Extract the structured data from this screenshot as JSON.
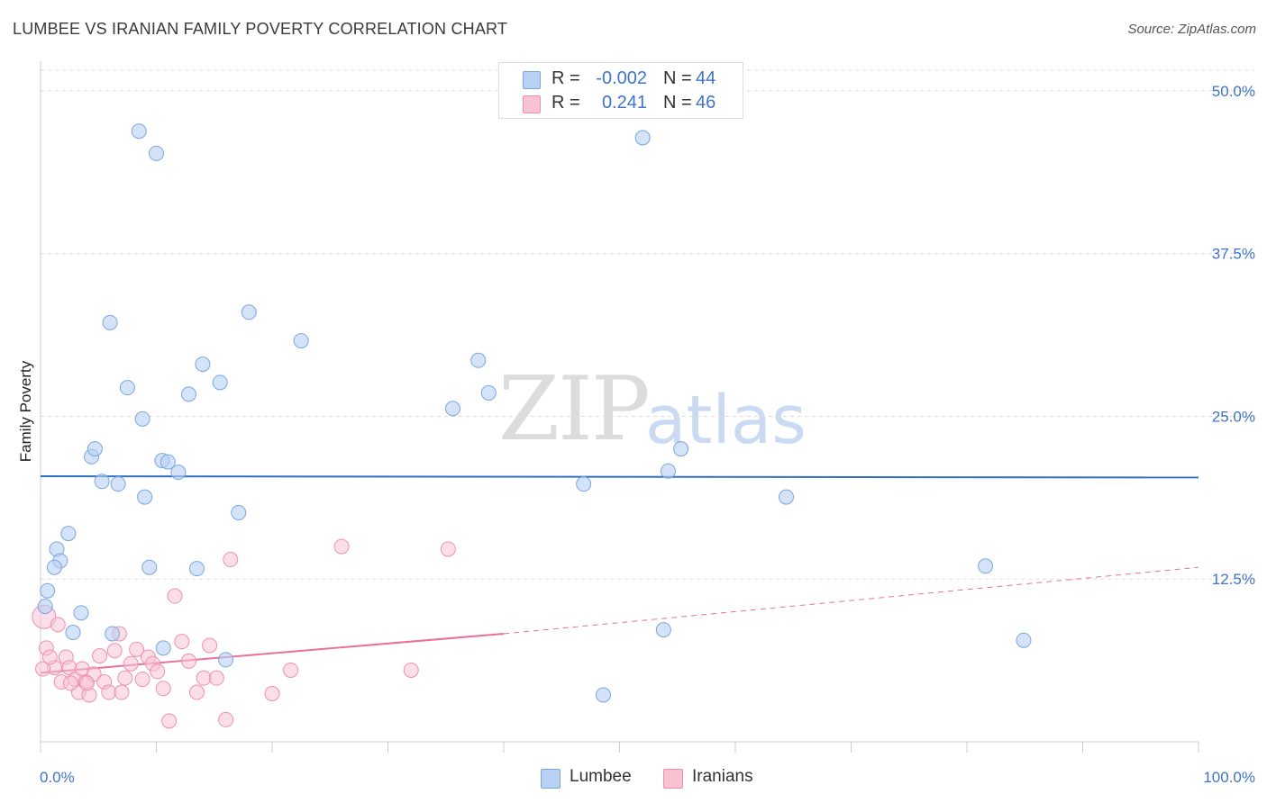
{
  "title": "LUMBEE VS IRANIAN FAMILY POVERTY CORRELATION CHART",
  "source": "Source: ZipAtlas.com",
  "watermark": {
    "zip": "ZIP",
    "atlas": "atlas"
  },
  "legend": {
    "rows": [
      {
        "r_label": "R =",
        "r_value": "-0.002",
        "n_label": "N =",
        "n_value": "44"
      },
      {
        "r_label": "R =",
        "r_value": "0.241",
        "n_label": "N =",
        "n_value": "46"
      }
    ]
  },
  "bottom_legend": {
    "lumbee": "Lumbee",
    "iranians": "Iranians"
  },
  "colors": {
    "lumbee_fill": "#b8d0f2",
    "lumbee_stroke": "#7aa6e0",
    "lumbee_line": "#2f6fc6",
    "iranian_fill": "#f7c3d3",
    "iranian_stroke": "#ee8fb0",
    "iranian_line": "#e8709a",
    "tick_text": "#3f74c9",
    "grid": "#dddddd"
  },
  "chart_data": {
    "type": "scatter",
    "title": "LUMBEE VS IRANIAN FAMILY POVERTY CORRELATION CHART",
    "xlabel": "",
    "ylabel": "Family Poverty",
    "xlim": [
      0,
      100
    ],
    "ylim": [
      0,
      52
    ],
    "x_tick_labels": [
      "0.0%",
      "100.0%"
    ],
    "y_ticks": [
      12.5,
      25.0,
      37.5,
      50.0
    ],
    "y_tick_labels": [
      "12.5%",
      "25.0%",
      "37.5%",
      "50.0%"
    ],
    "legend_position": "top-center",
    "series": [
      {
        "name": "Lumbee",
        "x": [
          8.5,
          10.0,
          52.0,
          6.0,
          18.0,
          22.5,
          7.5,
          15.5,
          12.8,
          14.0,
          35.6,
          38.7,
          8.8,
          4.4,
          4.7,
          10.5,
          11.0,
          11.9,
          5.3,
          6.7,
          37.8,
          9.0,
          17.1,
          2.4,
          1.4,
          1.7,
          1.2,
          0.6,
          0.4,
          3.5,
          2.8,
          6.2,
          9.4,
          13.5,
          10.6,
          16.0,
          55.3,
          54.2,
          64.4,
          81.6,
          53.8,
          84.9,
          48.6,
          46.9
        ],
        "y": [
          46.9,
          45.2,
          46.4,
          32.2,
          33.0,
          30.8,
          27.2,
          27.6,
          26.7,
          29.0,
          25.6,
          26.8,
          24.8,
          21.9,
          22.5,
          21.6,
          21.5,
          20.7,
          20.0,
          19.8,
          29.3,
          18.8,
          17.6,
          16.0,
          14.8,
          13.9,
          13.4,
          11.6,
          10.4,
          9.9,
          8.4,
          8.3,
          13.4,
          13.3,
          7.2,
          6.3,
          22.5,
          20.8,
          18.8,
          13.5,
          8.6,
          7.8,
          3.6,
          19.8
        ]
      },
      {
        "name": "Iranians",
        "x": [
          0.3,
          1.5,
          0.5,
          1.2,
          1.8,
          2.2,
          2.5,
          3.0,
          3.3,
          3.6,
          3.9,
          4.2,
          4.6,
          5.1,
          5.5,
          5.9,
          6.4,
          7.0,
          7.3,
          7.8,
          8.3,
          8.8,
          9.3,
          9.7,
          10.1,
          10.6,
          11.1,
          11.6,
          12.2,
          12.8,
          13.5,
          14.1,
          14.6,
          15.2,
          16.0,
          16.4,
          20.0,
          21.6,
          26.0,
          32.0,
          35.2,
          0.2,
          0.8,
          2.6,
          4.0,
          6.8
        ],
        "y": [
          9.6,
          9.0,
          7.2,
          5.7,
          4.6,
          6.5,
          5.7,
          4.8,
          3.8,
          5.6,
          4.6,
          3.6,
          5.2,
          6.6,
          4.6,
          3.8,
          7.0,
          3.8,
          4.9,
          6.0,
          7.1,
          4.8,
          6.5,
          6.0,
          5.4,
          4.1,
          1.6,
          11.2,
          7.7,
          6.2,
          3.8,
          4.9,
          7.4,
          4.9,
          1.7,
          14.0,
          3.7,
          5.5,
          15.0,
          5.5,
          14.8,
          5.6,
          6.5,
          4.5,
          4.5,
          8.3
        ]
      }
    ],
    "trend_lines": [
      {
        "series": "Lumbee",
        "x": [
          0,
          100
        ],
        "y": [
          20.4,
          20.3
        ],
        "style": "solid"
      },
      {
        "series": "Iranians",
        "x": [
          0,
          40,
          100
        ],
        "y": [
          5.3,
          8.3,
          13.4
        ],
        "style": "solid-then-dashed",
        "solid_until": 40
      }
    ]
  }
}
